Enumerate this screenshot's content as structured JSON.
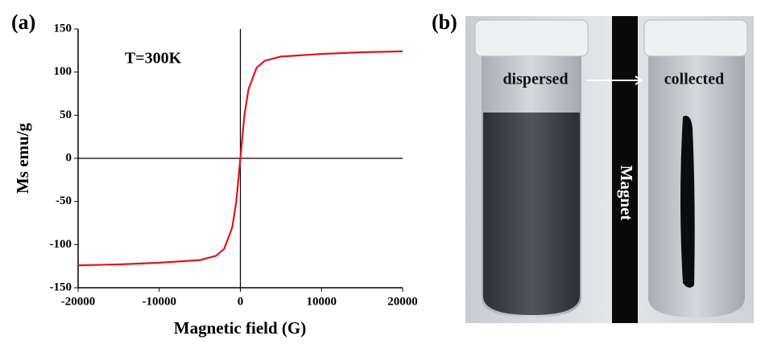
{
  "chart_data": {
    "type": "line",
    "panel_label": "(a)",
    "annotation": "T=300K",
    "x_label": "Magnetic field (G)",
    "y_label": "Ms emu/g",
    "x": [
      -20000,
      -15000,
      -10000,
      -5000,
      -3000,
      -2000,
      -1000,
      -500,
      0,
      500,
      1000,
      2000,
      3000,
      5000,
      10000,
      15000,
      20000
    ],
    "values": [
      -124,
      -123,
      -121,
      -118,
      -113,
      -105,
      -80,
      -50,
      0,
      50,
      80,
      105,
      113,
      118,
      121,
      123,
      124
    ],
    "color": "#e0141c",
    "xlim": [
      -20000,
      20000
    ],
    "xticks": [
      -20000,
      -10000,
      0,
      10000,
      20000
    ],
    "ylim": [
      -150,
      150
    ],
    "yticks": [
      -150,
      -100,
      -50,
      0,
      50,
      100,
      150
    ]
  },
  "photo": {
    "panel_label": "(b)",
    "left_label": "dispersed",
    "right_label": "collected",
    "magnet_label": "Magnet"
  }
}
